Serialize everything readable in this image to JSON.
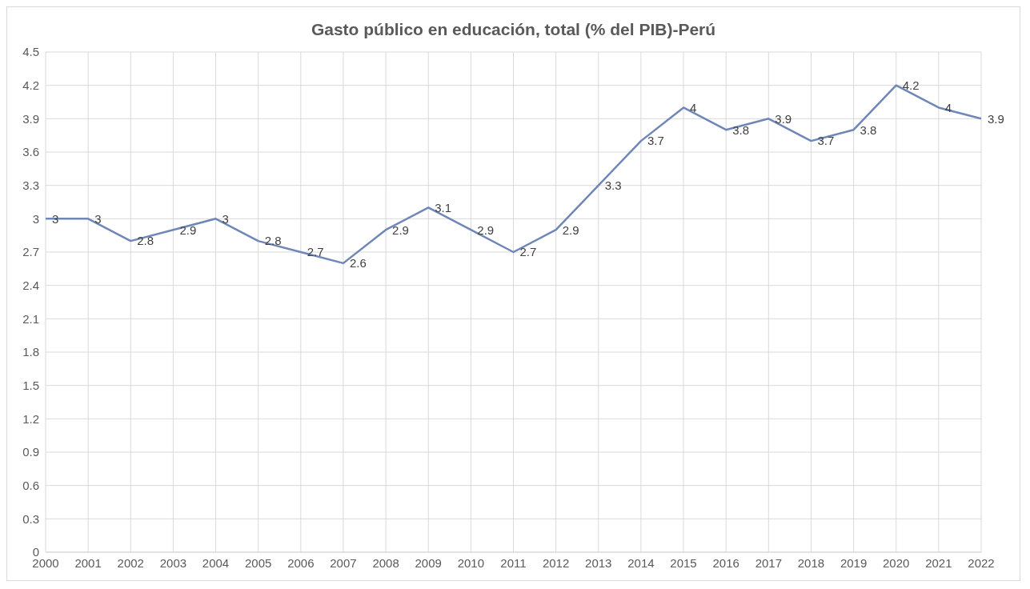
{
  "chart_data": {
    "type": "line",
    "title": "Gasto público en educación, total (% del PIB)-Perú",
    "categories": [
      "2000",
      "2001",
      "2002",
      "2003",
      "2004",
      "2005",
      "2006",
      "2007",
      "2008",
      "2009",
      "2010",
      "2011",
      "2012",
      "2013",
      "2014",
      "2015",
      "2016",
      "2017",
      "2018",
      "2019",
      "2020",
      "2021",
      "2022"
    ],
    "series": [
      {
        "color": "#6f87b8",
        "values": [
          3,
          3,
          2.8,
          2.9,
          3,
          2.8,
          2.7,
          2.6,
          2.9,
          3.1,
          2.9,
          2.7,
          2.9,
          3.3,
          3.7,
          4,
          3.8,
          3.9,
          3.7,
          3.8,
          4.2,
          4,
          3.9
        ]
      }
    ],
    "ylim": [
      0,
      4.5
    ],
    "yticks": [
      0,
      0.3,
      0.6,
      0.9,
      1.2,
      1.5,
      1.8,
      2.1,
      2.4,
      2.7,
      3,
      3.3,
      3.6,
      3.9,
      4.2,
      4.5
    ],
    "grid": true,
    "data_labels": true,
    "marker": "none",
    "line_style": "solid",
    "legend": false
  }
}
